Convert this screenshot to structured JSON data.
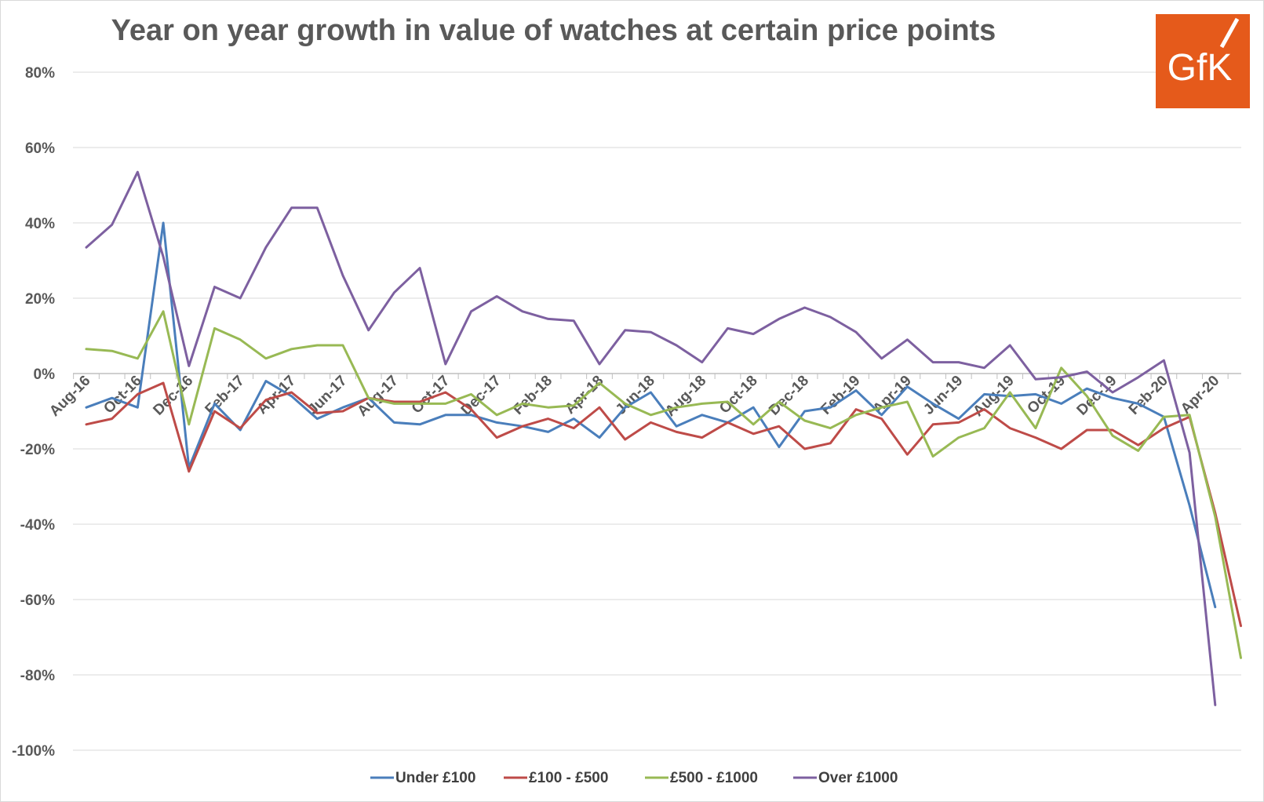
{
  "chart_data": {
    "type": "line",
    "title": "Year on year growth in value of watches at certain price points",
    "xlabel": "",
    "ylabel": "",
    "ylim": [
      -100,
      80
    ],
    "y_tick_labels": [
      "80%",
      "60%",
      "40%",
      "20%",
      "0%",
      "-20%",
      "-40%",
      "-60%",
      "-80%",
      "-100%"
    ],
    "grid": "horizontal",
    "legend_position": "bottom",
    "categories": [
      "Aug-16",
      "Sep-16",
      "Oct-16",
      "Nov-16",
      "Dec-16",
      "Jan-17",
      "Feb-17",
      "Mar-17",
      "Apr-17",
      "May-17",
      "Jun-17",
      "Jul-17",
      "Aug-17",
      "Sep-17",
      "Oct-17",
      "Nov-17",
      "Dec-17",
      "Jan-18",
      "Feb-18",
      "Mar-18",
      "Apr-18",
      "May-18",
      "Jun-18",
      "Jul-18",
      "Aug-18",
      "Sep-18",
      "Oct-18",
      "Nov-18",
      "Dec-18",
      "Jan-19",
      "Feb-19",
      "Mar-19",
      "Apr-19",
      "May-19",
      "Jun-19",
      "Jul-19",
      "Aug-19",
      "Sep-19",
      "Oct-19",
      "Nov-19",
      "Dec-19",
      "Jan-20",
      "Feb-20",
      "Mar-20",
      "Apr-20",
      "May-20"
    ],
    "x_tick_labels": [
      "Aug-16",
      "Oct-16",
      "Dec-16",
      "Feb-17",
      "Apr-17",
      "Jun-17",
      "Aug-17",
      "Oct-17",
      "Dec-17",
      "Feb-18",
      "Apr-18",
      "Jun-18",
      "Aug-18",
      "Oct-18",
      "Dec-18",
      "Feb-19",
      "Apr-19",
      "Jun-19",
      "Aug-19",
      "Oct-19",
      "Dec-19",
      "Feb-20",
      "Apr-20"
    ],
    "series": [
      {
        "name": "Under £100",
        "color": "#4a7ebb",
        "values": [
          -9,
          -6.5,
          -9,
          40,
          -25,
          -8,
          -15,
          -2,
          -6,
          -12,
          -9,
          -6.5,
          -13,
          -13.5,
          -11,
          -11,
          -13,
          -14,
          -15.5,
          -12,
          -17,
          -9,
          -5,
          -14,
          -11,
          -13,
          -9,
          -19.5,
          -10,
          -9,
          -4.5,
          -11,
          -3.5,
          -8,
          -12,
          -5.5,
          -6,
          -5.5,
          -8,
          -4,
          -6.5,
          -8,
          -11.5,
          -35,
          -62,
          null
        ]
      },
      {
        "name": "£100 - £500",
        "color": "#be4b48",
        "values": [
          -13.5,
          -12,
          -5.5,
          -2.5,
          -26,
          -10,
          -14.5,
          -7,
          -5,
          -10.5,
          -10,
          -6.5,
          -7.5,
          -7.5,
          -5,
          -9.5,
          -17,
          -14,
          -12,
          -14.5,
          -9,
          -17.5,
          -13,
          -15.5,
          -17,
          -13,
          -16,
          -14,
          -20,
          -18.5,
          -9.5,
          -12,
          -21.5,
          -13.5,
          -13,
          -9.5,
          -14.5,
          -17,
          -20,
          -15,
          -15,
          -19,
          -14.5,
          -11.5,
          -37,
          -67
        ]
      },
      {
        "name": "£500 - £1000",
        "color": "#98b954",
        "values": [
          6.5,
          6,
          4,
          16.5,
          -13.5,
          12,
          9,
          4,
          6.5,
          7.5,
          7.5,
          -6.5,
          -8,
          -8,
          -8,
          -5.5,
          -11,
          -8,
          -9,
          -8.5,
          -2.5,
          -8,
          -11,
          -9,
          -8,
          -7.5,
          -13.5,
          -7.5,
          -12.5,
          -14.5,
          -11,
          -9,
          -7.5,
          -22,
          -17,
          -14.5,
          -5,
          -14.5,
          1.5,
          -6,
          -16.5,
          -20.5,
          -11.5,
          -11,
          -38,
          -75.5
        ]
      },
      {
        "name": "Over £1000",
        "color": "#7d60a0",
        "values": [
          33.5,
          39.5,
          53.5,
          31,
          2,
          23,
          20,
          33.5,
          44,
          44,
          26,
          11.5,
          21.5,
          28,
          2.5,
          16.5,
          20.5,
          16.5,
          14.5,
          14,
          2.5,
          11.5,
          11,
          7.5,
          3,
          12,
          10.5,
          14.5,
          17.5,
          15,
          11,
          4,
          9,
          3,
          3,
          1.5,
          7.5,
          -1.5,
          -1,
          0.5,
          -5,
          -1,
          3.5,
          -21,
          -88,
          null
        ]
      }
    ]
  },
  "logo": {
    "text": "GfK",
    "color": "#e55a1b"
  }
}
